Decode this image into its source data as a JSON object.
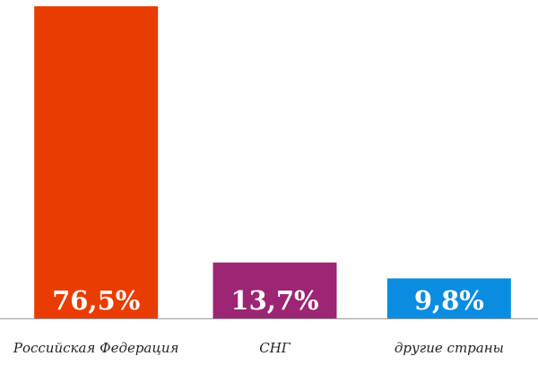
{
  "chart_data": {
    "type": "bar",
    "categories": [
      "Российская Федерация",
      "СНГ",
      "другие страны"
    ],
    "values": [
      76.5,
      13.7,
      9.8
    ],
    "value_labels": [
      "76,5%",
      "13,7%",
      "9,8%"
    ],
    "colors": [
      "#e83c00",
      "#9c2673",
      "#0a8de0"
    ]
  }
}
